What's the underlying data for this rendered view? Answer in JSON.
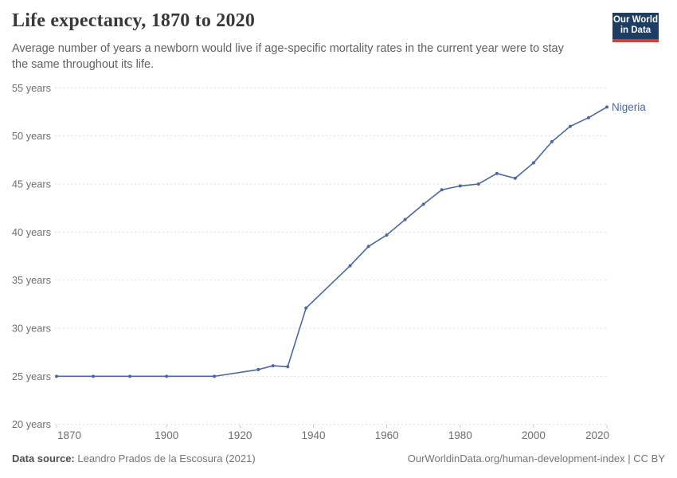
{
  "header": {
    "title": "Life expectancy, 1870 to 2020",
    "subtitle_lines": [
      "Average number of years a newborn would live if age-specific mortality rates in the current year were to stay",
      "the same throughout its life."
    ],
    "logo": {
      "line1": "Our World",
      "line2": "in Data"
    }
  },
  "chart_data": {
    "type": "line",
    "title": "Life expectancy, 1870 to 2020",
    "subtitle": "Average number of years a newborn would live if age-specific mortality rates in the current year were to stay the same throughout its life.",
    "xlabel": "",
    "ylabel": "",
    "xlim": [
      1870,
      2020
    ],
    "ylim": [
      20,
      55
    ],
    "x_ticks": [
      1870,
      1900,
      1920,
      1940,
      1960,
      1980,
      2000,
      2020
    ],
    "y_ticks": [
      20,
      25,
      30,
      35,
      40,
      45,
      50,
      55
    ],
    "y_tick_suffix": " years",
    "grid": "horizontal-dashed",
    "legend_position": "end-of-line-label",
    "series": [
      {
        "name": "Nigeria",
        "color": "#4a67a4",
        "x": [
          1870,
          1880,
          1890,
          1900,
          1913,
          1925,
          1929,
          1933,
          1938,
          1950,
          1955,
          1960,
          1965,
          1970,
          1975,
          1980,
          1985,
          1990,
          1995,
          2000,
          2005,
          2010,
          2015,
          2020
        ],
        "values": [
          25.0,
          25.0,
          25.0,
          25.0,
          25.0,
          25.7,
          26.1,
          26.0,
          32.1,
          36.5,
          38.5,
          39.7,
          41.3,
          42.9,
          44.4,
          44.8,
          45.0,
          46.1,
          45.6,
          47.2,
          49.4,
          51.0,
          51.9,
          53.0
        ]
      }
    ]
  },
  "footer": {
    "source_label": "Data source:",
    "source_text": " Leandro Prados de la Escosura (2021)",
    "credit": "OurWorldinData.org/human-development-index | CC BY"
  },
  "colors": {
    "series_blue": "#4a67a4",
    "grid": "#dcdcdc",
    "tick": "#c8c8c8",
    "axis_text": "#6e6e6e",
    "logo_navy": "#1d3d63",
    "logo_red": "#d93a32",
    "title_text": "#383838",
    "subtitle_text": "#5c6266"
  }
}
